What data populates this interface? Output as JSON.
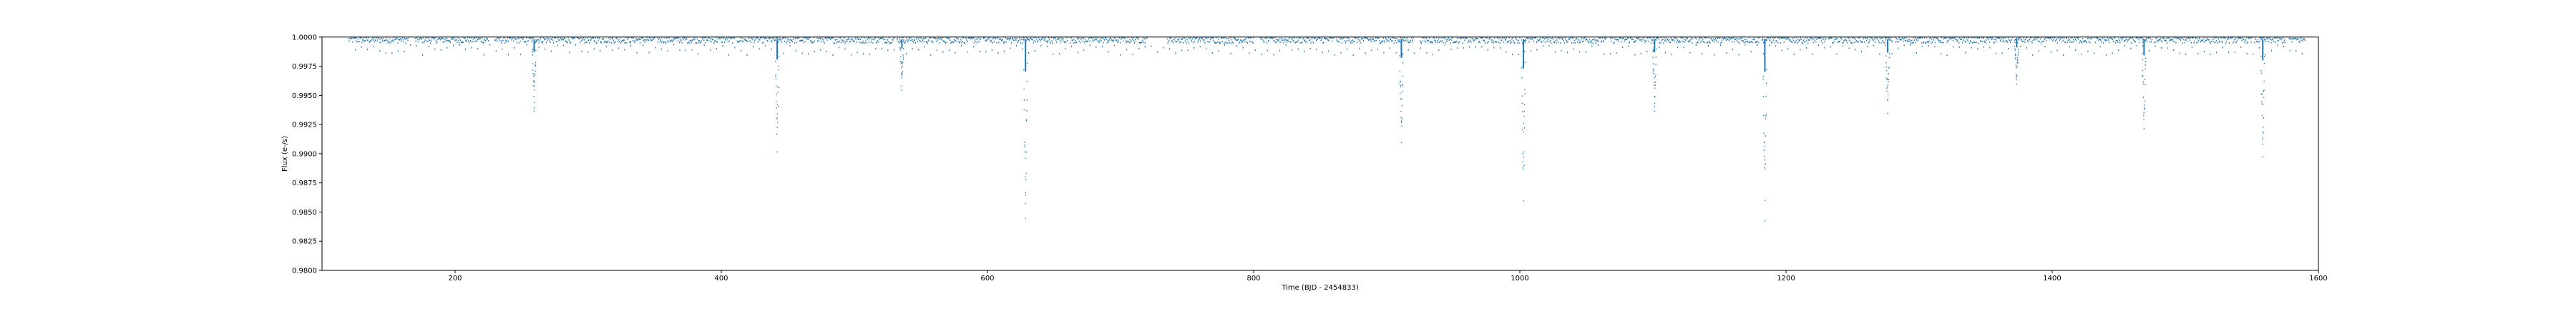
{
  "chart_data": {
    "type": "scatter",
    "title": "",
    "xlabel": "Time (BJD - 2454833)",
    "ylabel": "Flux (e-/s)",
    "xlim": [
      100,
      1600
    ],
    "ylim": [
      0.98,
      1.0
    ],
    "xticks": [
      200,
      400,
      600,
      800,
      1000,
      1200,
      1400,
      1600
    ],
    "xtick_labels": [
      "200",
      "400",
      "600",
      "800",
      "1000",
      "1200",
      "1400",
      "1600"
    ],
    "yticks": [
      0.98,
      0.9825,
      0.985,
      0.9875,
      0.99,
      0.9925,
      0.995,
      0.9975,
      1.0
    ],
    "ytick_labels": [
      "0.9800",
      "0.9825",
      "0.9850",
      "0.9875",
      "0.9900",
      "0.9925",
      "0.9950",
      "0.9975",
      "1.0000"
    ],
    "grid": false,
    "series": [
      {
        "color": "#1f77b4",
        "baseline": 0.9998,
        "observed_ranges": [
          [
            120,
            165
          ],
          [
            170,
            225
          ],
          [
            230,
            290
          ],
          [
            292,
            350
          ],
          [
            352,
            410
          ],
          [
            412,
            470
          ],
          [
            472,
            530
          ],
          [
            532,
            595
          ],
          [
            597,
            660
          ],
          [
            662,
            720
          ],
          [
            735,
            800
          ],
          [
            805,
            860
          ],
          [
            862,
            920
          ],
          [
            925,
            1000
          ],
          [
            1002,
            1065
          ],
          [
            1068,
            1130
          ],
          [
            1132,
            1180
          ],
          [
            1182,
            1230
          ],
          [
            1232,
            1280
          ],
          [
            1282,
            1370
          ],
          [
            1372,
            1430
          ],
          [
            1432,
            1475
          ],
          [
            1477,
            1550
          ],
          [
            1552,
            1575
          ],
          [
            1578,
            1590
          ]
        ],
        "transits": [
          {
            "x": 259.4,
            "min": 0.9937
          },
          {
            "x": 442.0,
            "min": 0.9902
          },
          {
            "x": 535.7,
            "min": 0.9955
          },
          {
            "x": 628.6,
            "min": 0.9845
          },
          {
            "x": 911.0,
            "min": 0.991
          },
          {
            "x": 1002.7,
            "min": 0.986
          },
          {
            "x": 1101.2,
            "min": 0.9937
          },
          {
            "x": 1184.1,
            "min": 0.9843
          },
          {
            "x": 1276.4,
            "min": 0.9935
          },
          {
            "x": 1373.3,
            "min": 0.996
          },
          {
            "x": 1469.0,
            "min": 0.9922
          },
          {
            "x": 1558.2,
            "min": 0.9898
          }
        ]
      }
    ]
  }
}
